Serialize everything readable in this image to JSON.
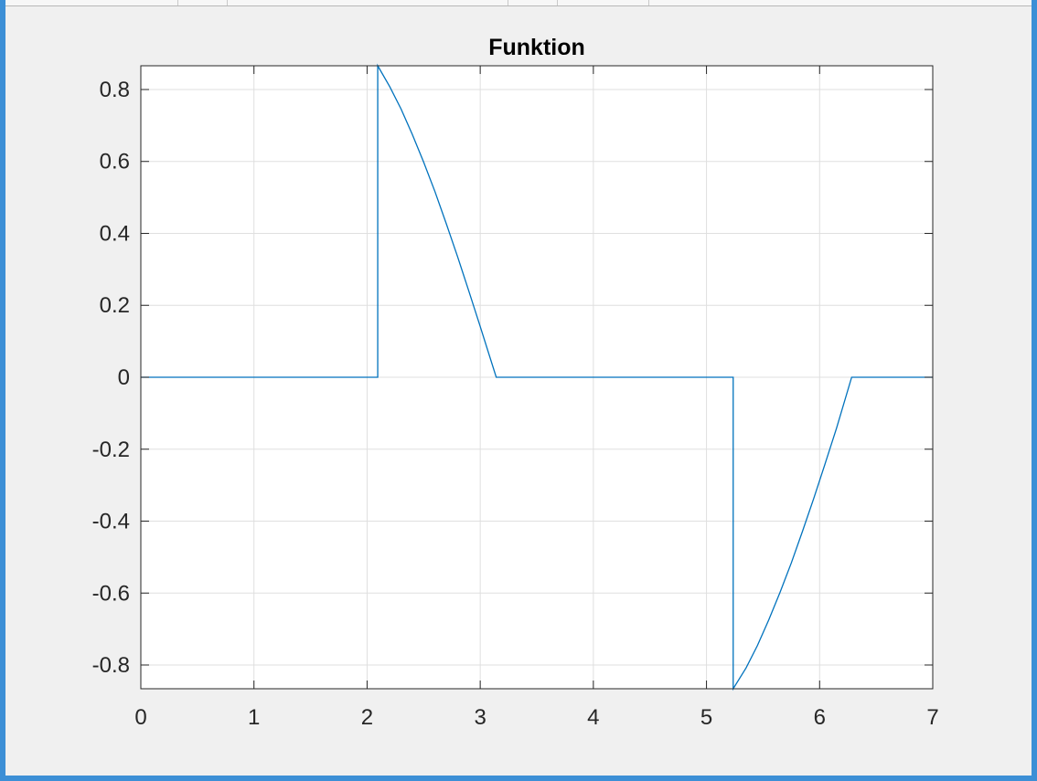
{
  "chart_data": {
    "type": "line",
    "title": "Funktion",
    "xlabel": "",
    "ylabel": "",
    "xlim": [
      0,
      7
    ],
    "ylim": [
      -0.866,
      0.866
    ],
    "x_ticks": [
      0,
      1,
      2,
      3,
      4,
      5,
      6,
      7
    ],
    "x_tick_labels": [
      "0",
      "1",
      "2",
      "3",
      "4",
      "5",
      "6",
      "7"
    ],
    "y_ticks": [
      0.8,
      0.6,
      0.4,
      0.2,
      0,
      -0.2,
      -0.4,
      -0.6,
      -0.8
    ],
    "y_tick_labels": [
      "0.8",
      "0.6",
      "0.4",
      "0.2",
      "0",
      "-0.2",
      "-0.4",
      "-0.6",
      "-0.8"
    ],
    "grid": true,
    "series": [
      {
        "color": "#0072bd",
        "x": [
          0,
          2.094,
          2.094,
          2.2,
          2.3,
          2.4,
          2.5,
          2.6,
          2.7,
          2.8,
          2.9,
          3.0,
          3.1416,
          5.236,
          5.236,
          5.35,
          5.45,
          5.55,
          5.65,
          5.75,
          5.85,
          5.95,
          6.05,
          6.15,
          6.2832,
          7
        ],
        "y": [
          0,
          0,
          0.866,
          0.808,
          0.746,
          0.675,
          0.598,
          0.516,
          0.427,
          0.335,
          0.239,
          0.141,
          0,
          0,
          -0.866,
          -0.808,
          -0.746,
          -0.675,
          -0.598,
          -0.516,
          -0.427,
          -0.335,
          -0.239,
          -0.141,
          0,
          0
        ]
      }
    ]
  }
}
